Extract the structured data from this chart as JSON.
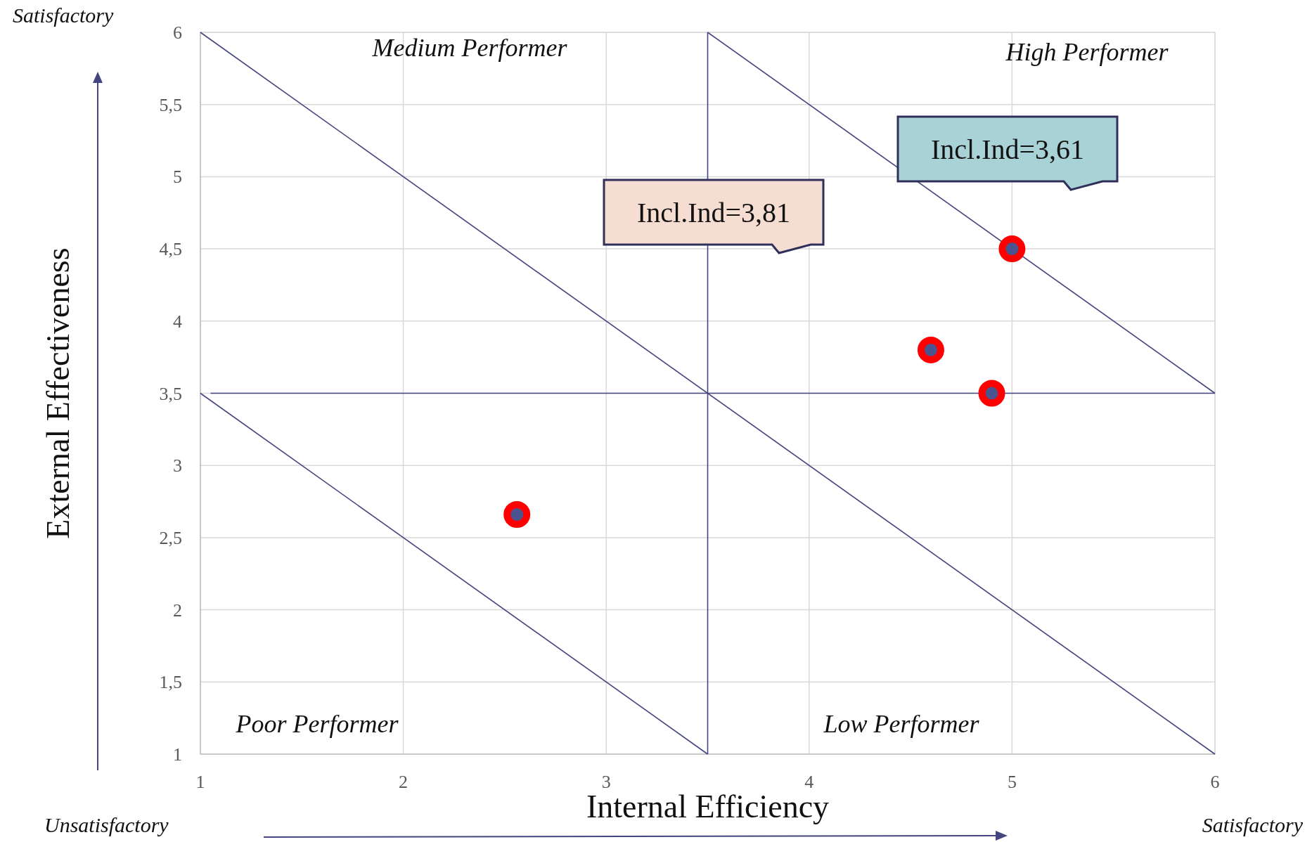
{
  "chart_data": {
    "type": "scatter",
    "xlabel": "Internal Efficiency",
    "ylabel": "External Effectiveness",
    "xlim": [
      1,
      6
    ],
    "xticks": [
      1,
      2,
      3,
      4,
      5,
      6
    ],
    "ylim": [
      1,
      6
    ],
    "yticks": [
      1,
      {
        "value": 1.5,
        "label": "1,5"
      },
      2,
      {
        "value": 2.5,
        "label": "2,5"
      },
      3,
      {
        "value": 3.5,
        "label": "3,5"
      },
      4,
      {
        "value": 4.5,
        "label": "4,5"
      },
      5,
      {
        "value": 5.5,
        "label": "5,5"
      },
      6
    ],
    "grid": true,
    "series": [
      {
        "type": "line",
        "color": "#45457f",
        "x": [
          3.5,
          3.5
        ],
        "values": [
          1,
          6
        ]
      },
      {
        "type": "line",
        "color": "#45457f",
        "x": [
          1.05,
          6
        ],
        "values": [
          3.5,
          3.5
        ]
      },
      {
        "type": "line",
        "color": "#45457f",
        "x": [
          1,
          6
        ],
        "values": [
          6,
          1
        ]
      },
      {
        "type": "line",
        "color": "#45457f",
        "x": [
          1,
          3.5
        ],
        "values": [
          3.5,
          1
        ]
      },
      {
        "type": "line",
        "color": "#45457f",
        "x": [
          3.5,
          6
        ],
        "values": [
          6,
          3.5
        ]
      },
      {
        "color": "#ff0000",
        "marker": "circle",
        "x": [
          2.56,
          4.6,
          4.9,
          5.0
        ],
        "values": [
          2.66,
          3.8,
          3.5,
          4.5
        ]
      }
    ],
    "annotations": [
      "Medium Performer",
      "High Performer",
      "Poor Performer",
      "Low Performer",
      "Incl.Ind=3,81",
      "Incl.Ind=3,61",
      "Satisfactory",
      "Unsatisfactory",
      "Satisfactory"
    ]
  }
}
